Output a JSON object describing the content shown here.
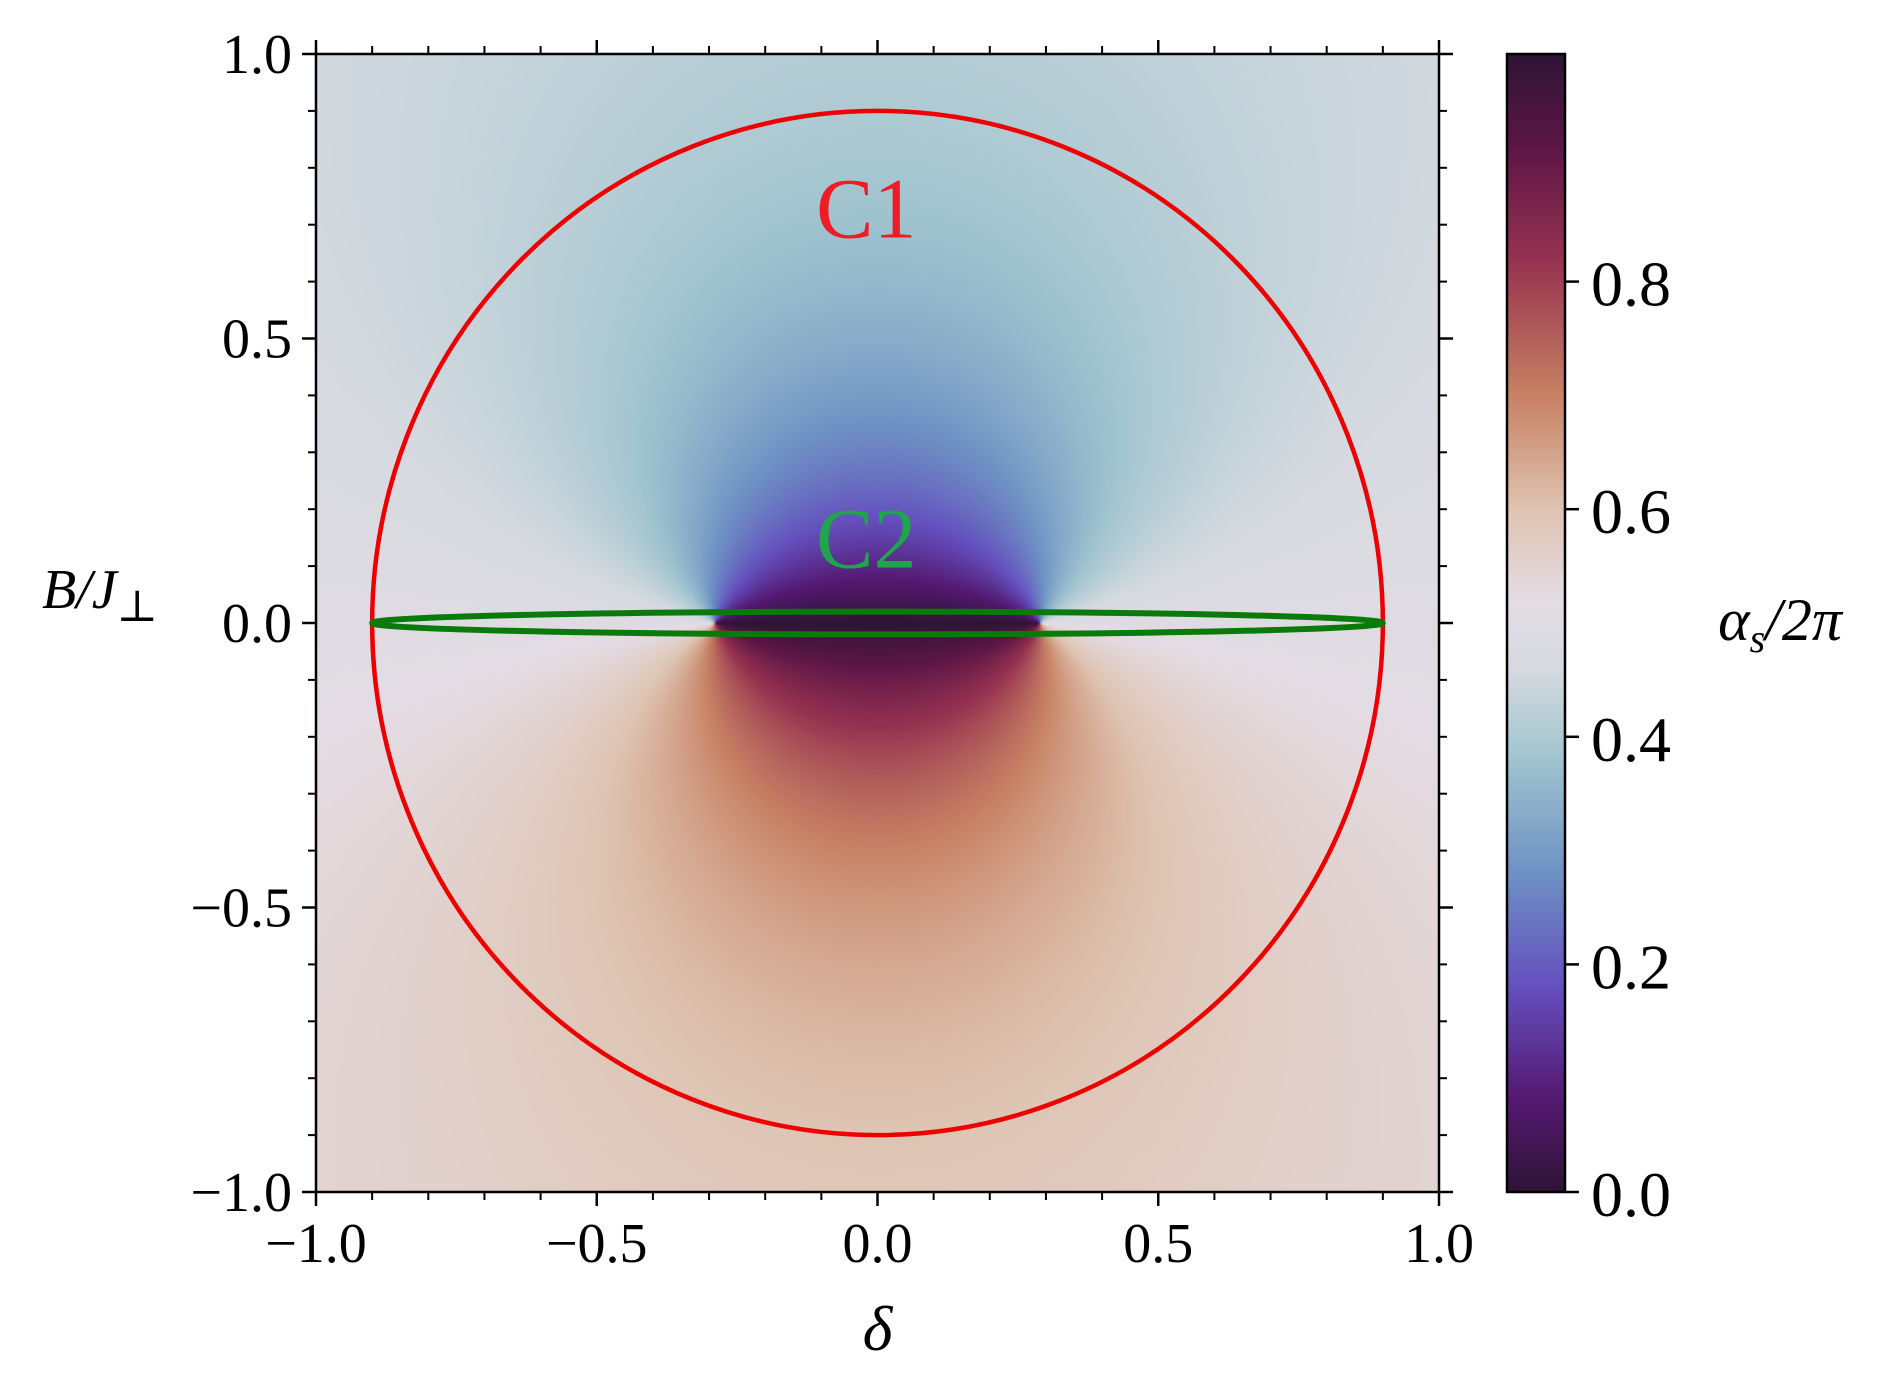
{
  "chart_data": {
    "type": "heatmap",
    "title": "",
    "xlabel": "δ",
    "ylabel": "B/J⊥",
    "xlim": [
      -1.0,
      1.0
    ],
    "ylim": [
      -1.0,
      1.0
    ],
    "x_ticks": [
      "−1.0",
      "−0.5",
      "0.0",
      "0.5",
      "1.0"
    ],
    "x_tick_values": [
      -1.0,
      -0.5,
      0.0,
      0.5,
      1.0
    ],
    "y_ticks": [
      "−1.0",
      "−0.5",
      "0.0",
      "0.5",
      "1.0"
    ],
    "y_tick_values": [
      -1.0,
      -0.5,
      0.0,
      0.5,
      1.0
    ],
    "colorbar": {
      "label": "αs/2π",
      "range": [
        0.0,
        1.0
      ],
      "ticks": [
        "0.0",
        "0.2",
        "0.4",
        "0.6",
        "0.8"
      ],
      "tick_values": [
        0.0,
        0.2,
        0.4,
        0.6,
        0.8
      ],
      "colormap": "twilight_shifted"
    },
    "field": {
      "description_values": "alpha_s/2pi = winding phase around two singular points at delta = ±0.29, B = 0",
      "singular_points": [
        [
          -0.29,
          0.0
        ],
        [
          0.29,
          0.0
        ]
      ],
      "branch_cut": {
        "from": [
          -0.29,
          0.0
        ],
        "to": [
          0.29,
          0.0
        ]
      }
    },
    "curves": [
      {
        "name": "C1",
        "shape": "circle",
        "center": [
          0.0,
          0.0
        ],
        "radius_delta": 0.9,
        "radius_B": 0.9,
        "color": "#ee0000"
      },
      {
        "name": "C2",
        "shape": "ellipse",
        "center": [
          0.0,
          0.0
        ],
        "radius_delta": 0.9,
        "radius_B": 0.02,
        "color": "#0a7a0a"
      }
    ],
    "annotations": [
      {
        "text": "C1",
        "x": -0.02,
        "y": 0.73,
        "color": "#ee1c24"
      },
      {
        "text": "C2",
        "x": -0.02,
        "y": 0.15,
        "color": "#1fa64a"
      }
    ]
  }
}
